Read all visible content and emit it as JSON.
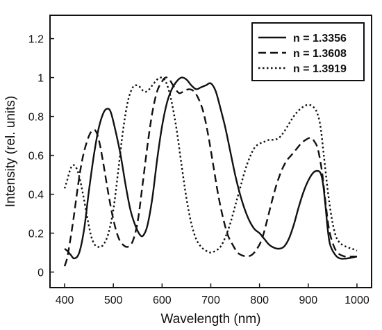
{
  "chart_data": {
    "type": "line",
    "title": "",
    "xlabel": "Wavelength (nm)",
    "ylabel": "Intensity (rel. units)",
    "xlim": [
      370,
      1030
    ],
    "ylim": [
      -0.08,
      1.32
    ],
    "xticks": [
      400,
      500,
      600,
      700,
      800,
      900,
      1000
    ],
    "xtick_labels": [
      "400",
      "500",
      "600",
      "700",
      "800",
      "900",
      "1000"
    ],
    "yticks": [
      0,
      0.2,
      0.4,
      0.6,
      0.8,
      1,
      1.2
    ],
    "ytick_labels": [
      "0",
      "0.2",
      "0.4",
      "0.6",
      "0.8",
      "1",
      "1.2"
    ],
    "grid": false,
    "legend_position": "top-right",
    "series": [
      {
        "name": "n = 1.3356",
        "style": "solid",
        "color": "#111111",
        "points": [
          [
            400,
            0.12
          ],
          [
            405,
            0.11
          ],
          [
            412,
            0.09
          ],
          [
            420,
            0.07
          ],
          [
            430,
            0.1
          ],
          [
            440,
            0.22
          ],
          [
            450,
            0.42
          ],
          [
            460,
            0.6
          ],
          [
            470,
            0.74
          ],
          [
            480,
            0.82
          ],
          [
            488,
            0.84
          ],
          [
            495,
            0.82
          ],
          [
            505,
            0.72
          ],
          [
            515,
            0.6
          ],
          [
            525,
            0.45
          ],
          [
            535,
            0.32
          ],
          [
            545,
            0.24
          ],
          [
            555,
            0.19
          ],
          [
            562,
            0.19
          ],
          [
            570,
            0.24
          ],
          [
            580,
            0.38
          ],
          [
            590,
            0.58
          ],
          [
            600,
            0.75
          ],
          [
            610,
            0.87
          ],
          [
            620,
            0.94
          ],
          [
            630,
            0.98
          ],
          [
            640,
            1.0
          ],
          [
            650,
            0.99
          ],
          [
            660,
            0.96
          ],
          [
            670,
            0.94
          ],
          [
            680,
            0.95
          ],
          [
            690,
            0.96
          ],
          [
            700,
            0.97
          ],
          [
            710,
            0.93
          ],
          [
            720,
            0.84
          ],
          [
            730,
            0.74
          ],
          [
            740,
            0.62
          ],
          [
            750,
            0.5
          ],
          [
            760,
            0.4
          ],
          [
            770,
            0.32
          ],
          [
            780,
            0.26
          ],
          [
            790,
            0.22
          ],
          [
            800,
            0.2
          ],
          [
            810,
            0.17
          ],
          [
            820,
            0.14
          ],
          [
            830,
            0.125
          ],
          [
            840,
            0.12
          ],
          [
            850,
            0.13
          ],
          [
            860,
            0.17
          ],
          [
            870,
            0.24
          ],
          [
            880,
            0.33
          ],
          [
            890,
            0.41
          ],
          [
            900,
            0.47
          ],
          [
            910,
            0.51
          ],
          [
            918,
            0.52
          ],
          [
            925,
            0.51
          ],
          [
            930,
            0.46
          ],
          [
            935,
            0.35
          ],
          [
            940,
            0.22
          ],
          [
            945,
            0.14
          ],
          [
            955,
            0.09
          ],
          [
            965,
            0.07
          ],
          [
            980,
            0.07
          ],
          [
            1000,
            0.08
          ]
        ]
      },
      {
        "name": "n = 1.3608",
        "style": "dashed",
        "color": "#111111",
        "points": [
          [
            400,
            0.03
          ],
          [
            405,
            0.07
          ],
          [
            410,
            0.14
          ],
          [
            418,
            0.27
          ],
          [
            425,
            0.4
          ],
          [
            432,
            0.52
          ],
          [
            440,
            0.62
          ],
          [
            450,
            0.7
          ],
          [
            458,
            0.73
          ],
          [
            465,
            0.72
          ],
          [
            472,
            0.66
          ],
          [
            480,
            0.55
          ],
          [
            490,
            0.4
          ],
          [
            500,
            0.27
          ],
          [
            510,
            0.18
          ],
          [
            520,
            0.14
          ],
          [
            530,
            0.13
          ],
          [
            540,
            0.16
          ],
          [
            550,
            0.26
          ],
          [
            560,
            0.45
          ],
          [
            570,
            0.65
          ],
          [
            580,
            0.82
          ],
          [
            590,
            0.93
          ],
          [
            600,
            0.98
          ],
          [
            607,
            1.0
          ],
          [
            615,
            0.99
          ],
          [
            625,
            0.95
          ],
          [
            635,
            0.92
          ],
          [
            645,
            0.93
          ],
          [
            655,
            0.94
          ],
          [
            665,
            0.93
          ],
          [
            675,
            0.89
          ],
          [
            685,
            0.82
          ],
          [
            695,
            0.7
          ],
          [
            705,
            0.55
          ],
          [
            715,
            0.4
          ],
          [
            725,
            0.28
          ],
          [
            735,
            0.19
          ],
          [
            745,
            0.14
          ],
          [
            755,
            0.1
          ],
          [
            765,
            0.085
          ],
          [
            775,
            0.08
          ],
          [
            785,
            0.09
          ],
          [
            795,
            0.12
          ],
          [
            805,
            0.17
          ],
          [
            815,
            0.26
          ],
          [
            825,
            0.36
          ],
          [
            835,
            0.45
          ],
          [
            845,
            0.52
          ],
          [
            855,
            0.57
          ],
          [
            865,
            0.6
          ],
          [
            875,
            0.63
          ],
          [
            885,
            0.66
          ],
          [
            895,
            0.68
          ],
          [
            905,
            0.69
          ],
          [
            913,
            0.67
          ],
          [
            920,
            0.63
          ],
          [
            928,
            0.52
          ],
          [
            935,
            0.37
          ],
          [
            942,
            0.23
          ],
          [
            950,
            0.15
          ],
          [
            960,
            0.1
          ],
          [
            975,
            0.08
          ],
          [
            990,
            0.08
          ],
          [
            1000,
            0.08
          ]
        ]
      },
      {
        "name": "n = 1.3919",
        "style": "dotted",
        "color": "#111111",
        "points": [
          [
            400,
            0.43
          ],
          [
            405,
            0.47
          ],
          [
            412,
            0.53
          ],
          [
            418,
            0.55
          ],
          [
            425,
            0.53
          ],
          [
            432,
            0.47
          ],
          [
            440,
            0.37
          ],
          [
            448,
            0.26
          ],
          [
            455,
            0.18
          ],
          [
            462,
            0.14
          ],
          [
            468,
            0.13
          ],
          [
            475,
            0.13
          ],
          [
            482,
            0.15
          ],
          [
            490,
            0.2
          ],
          [
            500,
            0.32
          ],
          [
            510,
            0.52
          ],
          [
            520,
            0.73
          ],
          [
            530,
            0.88
          ],
          [
            540,
            0.95
          ],
          [
            548,
            0.96
          ],
          [
            555,
            0.95
          ],
          [
            562,
            0.93
          ],
          [
            570,
            0.93
          ],
          [
            580,
            0.96
          ],
          [
            590,
            0.99
          ],
          [
            598,
            1.0
          ],
          [
            605,
            0.99
          ],
          [
            612,
            0.95
          ],
          [
            620,
            0.87
          ],
          [
            630,
            0.73
          ],
          [
            640,
            0.55
          ],
          [
            650,
            0.38
          ],
          [
            660,
            0.25
          ],
          [
            670,
            0.17
          ],
          [
            680,
            0.13
          ],
          [
            690,
            0.11
          ],
          [
            700,
            0.1
          ],
          [
            710,
            0.11
          ],
          [
            720,
            0.13
          ],
          [
            730,
            0.18
          ],
          [
            740,
            0.25
          ],
          [
            750,
            0.34
          ],
          [
            760,
            0.43
          ],
          [
            770,
            0.52
          ],
          [
            780,
            0.59
          ],
          [
            790,
            0.64
          ],
          [
            800,
            0.66
          ],
          [
            810,
            0.67
          ],
          [
            820,
            0.68
          ],
          [
            830,
            0.68
          ],
          [
            840,
            0.69
          ],
          [
            850,
            0.72
          ],
          [
            860,
            0.76
          ],
          [
            870,
            0.8
          ],
          [
            880,
            0.83
          ],
          [
            890,
            0.85
          ],
          [
            900,
            0.86
          ],
          [
            910,
            0.85
          ],
          [
            918,
            0.82
          ],
          [
            925,
            0.75
          ],
          [
            932,
            0.6
          ],
          [
            940,
            0.42
          ],
          [
            948,
            0.28
          ],
          [
            956,
            0.19
          ],
          [
            965,
            0.15
          ],
          [
            978,
            0.13
          ],
          [
            990,
            0.12
          ],
          [
            1000,
            0.11
          ]
        ]
      }
    ]
  }
}
